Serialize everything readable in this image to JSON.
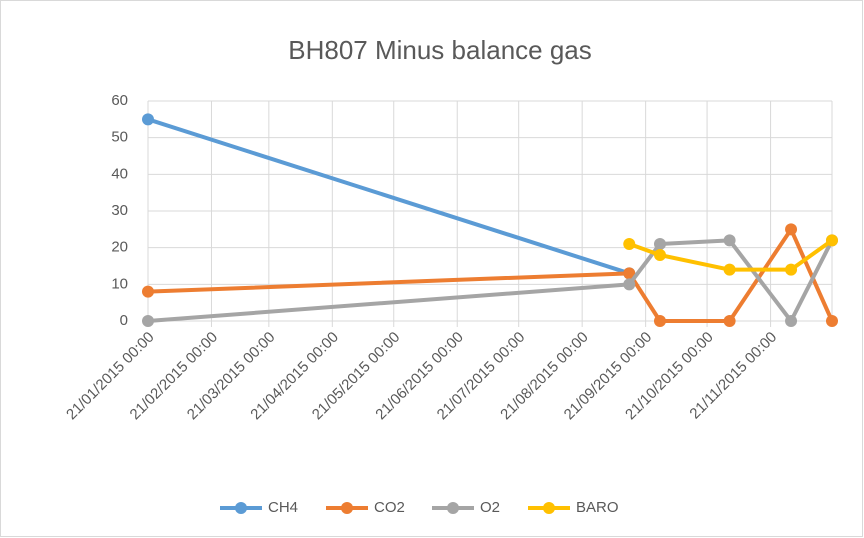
{
  "chart_data": {
    "type": "line",
    "title": "BH807 Minus balance gas",
    "series": [
      {
        "name": "CH4",
        "color": "#5b9bd5",
        "x": [
          "2015-01-21",
          "2015-09-13"
        ],
        "values": [
          55,
          13
        ]
      },
      {
        "name": "CO2",
        "color": "#ed7d31",
        "x": [
          "2015-01-21",
          "2015-09-13",
          "2015-09-28",
          "2015-11-01",
          "2015-12-01",
          "2015-12-21"
        ],
        "values": [
          8,
          13,
          0,
          0,
          25,
          0
        ]
      },
      {
        "name": "O2",
        "color": "#a5a5a5",
        "x": [
          "2015-01-21",
          "2015-09-13",
          "2015-09-28",
          "2015-11-01",
          "2015-12-01",
          "2015-12-21"
        ],
        "values": [
          0,
          10,
          21,
          22,
          0,
          22
        ]
      },
      {
        "name": "BARO",
        "color": "#ffc000",
        "x": [
          "2015-09-13",
          "2015-09-28",
          "2015-11-01",
          "2015-12-01",
          "2015-12-21"
        ],
        "values": [
          21,
          18,
          14,
          14,
          22
        ]
      }
    ],
    "xlim": [
      "2015-01-21",
      "2015-12-21"
    ],
    "xticks": [
      {
        "value": "2015-01-21",
        "label": "21/01/2015 00:00"
      },
      {
        "value": "2015-02-21",
        "label": "21/02/2015 00:00"
      },
      {
        "value": "2015-03-21",
        "label": "21/03/2015 00:00"
      },
      {
        "value": "2015-04-21",
        "label": "21/04/2015 00:00"
      },
      {
        "value": "2015-05-21",
        "label": "21/05/2015 00:00"
      },
      {
        "value": "2015-06-21",
        "label": "21/06/2015 00:00"
      },
      {
        "value": "2015-07-21",
        "label": "21/07/2015 00:00"
      },
      {
        "value": "2015-08-21",
        "label": "21/08/2015 00:00"
      },
      {
        "value": "2015-09-21",
        "label": "21/09/2015 00:00"
      },
      {
        "value": "2015-10-21",
        "label": "21/10/2015 00:00"
      },
      {
        "value": "2015-11-21",
        "label": "21/11/2015 00:00"
      }
    ],
    "ylim": [
      0,
      60
    ],
    "yticks": [
      0,
      10,
      20,
      30,
      40,
      50,
      60
    ],
    "grid": true,
    "legend": "bottom"
  }
}
